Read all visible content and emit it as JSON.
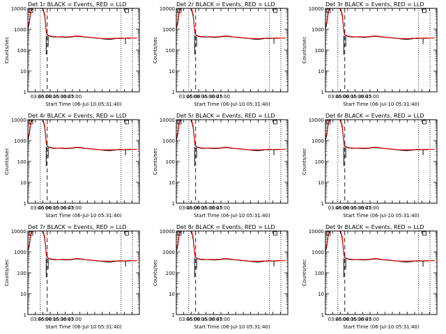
{
  "chart_data": {
    "type": "line",
    "y_scale": "log",
    "ylim": [
      1,
      10000
    ],
    "y_ticks": [
      1,
      10,
      100,
      1000,
      10000
    ],
    "y_tick_labels": [
      "1",
      "10",
      "100",
      "1000",
      "10000"
    ],
    "ylabel": "Counts/sec",
    "xlabel": "Start Time (06-Jul-10 05:31:40)",
    "x_unit": "minutes after 03:30 (06-Jul-10)",
    "xlim": [
      0,
      225
    ],
    "x_ticks": [
      15,
      30,
      45,
      60,
      75,
      90,
      105,
      120,
      135,
      150,
      165,
      180,
      195,
      210
    ],
    "x_tick_labels": [
      "03:45",
      "06:00",
      "06:15",
      "06:30",
      "06:45",
      "07:00"
    ],
    "x_label_ticks": [
      15,
      30,
      45,
      60,
      75,
      90
    ],
    "legend_text": "BLACK = Events, RED = LLD",
    "series_colors": {
      "events": "#000000",
      "lld": "#ff0000"
    },
    "panels": [
      {
        "title": "Det 1r BLACK = Events, RED = LLD"
      },
      {
        "title": "Det 2r BLACK = Events, RED = LLD"
      },
      {
        "title": "Det 3r BLACK = Events, RED = LLD"
      },
      {
        "title": "Det 4r BLACK = Events, RED = LLD"
      },
      {
        "title": "Det 5r BLACK = Events, RED = LLD"
      },
      {
        "title": "Det 6r BLACK = Events, RED = LLD"
      },
      {
        "title": "Det 7r BLACK = Events, RED = LLD"
      },
      {
        "title": "Det 8r BLACK = Events, RED = LLD"
      },
      {
        "title": "Det 9r BLACK = Events, RED = LLD"
      }
    ],
    "series": [
      {
        "name": "Events",
        "color": "#000000",
        "x": [
          0,
          3,
          6,
          10,
          14,
          18,
          22,
          26,
          28,
          31,
          34,
          37,
          38,
          40,
          45,
          50,
          55,
          60,
          65,
          70,
          75,
          80,
          85,
          90,
          95,
          100,
          105,
          110,
          115,
          120,
          125,
          130,
          135,
          140,
          145,
          150,
          155,
          160,
          165,
          170,
          175,
          180,
          185,
          190,
          195,
          200,
          205,
          210,
          215,
          220
        ],
        "y": [
          1000,
          2000,
          7000,
          10000,
          10000,
          10000,
          10000,
          10000,
          10000,
          9000,
          4000,
          800,
          600,
          500,
          450,
          430,
          420,
          420,
          430,
          420,
          410,
          410,
          420,
          430,
          450,
          460,
          450,
          430,
          420,
          410,
          400,
          390,
          380,
          370,
          360,
          350,
          340,
          330,
          320,
          340,
          350,
          360,
          360,
          370,
          360,
          370,
          370,
          380,
          380,
          380
        ]
      },
      {
        "name": "LLD",
        "color": "#ff0000",
        "x": [
          0,
          3,
          6,
          10,
          14,
          18,
          22,
          26,
          28,
          31,
          34,
          37,
          38,
          40,
          45,
          50,
          55,
          60,
          65,
          70,
          75,
          80,
          85,
          90,
          95,
          100,
          105,
          110,
          115,
          120,
          125,
          130,
          135,
          140,
          145,
          150,
          155,
          160,
          165,
          170,
          175,
          180,
          185,
          190,
          195,
          200,
          205,
          210,
          215,
          220
        ],
        "y": [
          1200,
          2500,
          8000,
          10000,
          10000,
          10000,
          10000,
          10000,
          10000,
          9500,
          5000,
          900,
          700,
          520,
          470,
          450,
          440,
          430,
          440,
          440,
          430,
          430,
          440,
          450,
          470,
          480,
          470,
          450,
          430,
          420,
          410,
          400,
          390,
          380,
          370,
          360,
          360,
          360,
          360,
          360,
          370,
          370,
          380,
          380,
          370,
          380,
          380,
          380,
          380,
          380
        ]
      }
    ],
    "black_dips": [
      {
        "x": 37,
        "y_from": 500,
        "y_to": 60
      },
      {
        "x": 41,
        "y_from": 450,
        "y_to": 150
      },
      {
        "x": 197,
        "y_from": 360,
        "y_to": 200
      }
    ],
    "vertical_lines": [
      {
        "x": 25,
        "style": "dotted"
      },
      {
        "x": 39,
        "style": "dashed"
      },
      {
        "x": 188,
        "style": "dotted"
      },
      {
        "x": 211,
        "style": "dotted"
      }
    ]
  }
}
